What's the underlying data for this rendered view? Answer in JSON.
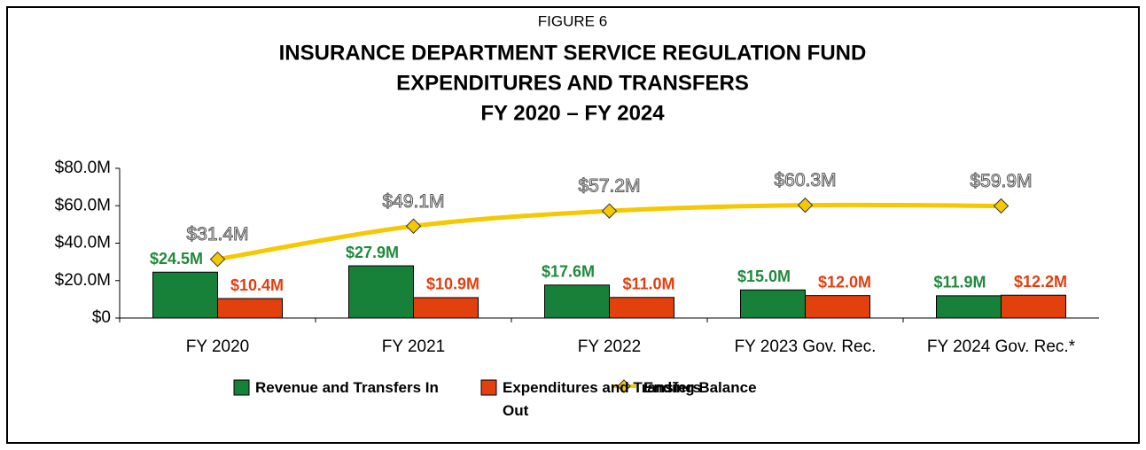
{
  "chart_data": {
    "type": "bar_line",
    "figure_label": "FIGURE 6",
    "title": [
      "INSURANCE DEPARTMENT SERVICE REGULATION FUND",
      "EXPENDITURES AND TRANSFERS",
      "FY 2020 – FY 2024"
    ],
    "categories": [
      "FY 2020",
      "FY 2021",
      "FY 2022",
      "FY 2023 Gov. Rec.",
      "FY 2024 Gov. Rec.*"
    ],
    "series": [
      {
        "name": "Revenue and Transfers In",
        "type": "bar",
        "color": "#17813a",
        "label_color": "#1f8a3c",
        "values": [
          24.5,
          27.9,
          17.6,
          15.0,
          11.9
        ],
        "value_labels": [
          "$24.5M",
          "$27.9M",
          "$17.6M",
          "$15.0M",
          "$11.9M"
        ]
      },
      {
        "name": "Expenditures and Transfers Out",
        "type": "bar",
        "color": "#e2400c",
        "label_color": "#e0400f",
        "values": [
          10.4,
          10.9,
          11.0,
          12.0,
          12.2
        ],
        "value_labels": [
          "$10.4M",
          "$10.9M",
          "$11.0M",
          "$12.0M",
          "$12.2M"
        ]
      },
      {
        "name": "Ending Balance",
        "type": "line",
        "color": "#f5c800",
        "values": [
          31.4,
          49.1,
          57.2,
          60.3,
          59.9
        ],
        "value_labels": [
          "$31.4M",
          "$49.1M",
          "$57.2M",
          "$60.3M",
          "$59.9M"
        ]
      }
    ],
    "ylim": [
      0,
      80
    ],
    "yticks": [
      {
        "value": 0,
        "label": "$0"
      },
      {
        "value": 20,
        "label": "$20.0M"
      },
      {
        "value": 40,
        "label": "$40.0M"
      },
      {
        "value": 60,
        "label": "$60.0M"
      },
      {
        "value": 80,
        "label": "$80.0M"
      }
    ],
    "legend": "bottom"
  }
}
